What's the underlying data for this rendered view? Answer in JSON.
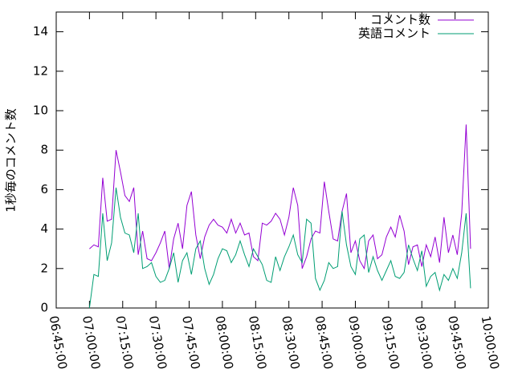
{
  "chart_data": {
    "type": "line",
    "ylabel": "1秒毎のコメント数",
    "x": [
      "07:00:00",
      "07:02:00",
      "07:04:00",
      "07:06:00",
      "07:08:00",
      "07:10:00",
      "07:12:00",
      "07:14:00",
      "07:16:00",
      "07:18:00",
      "07:20:00",
      "07:22:00",
      "07:24:00",
      "07:26:00",
      "07:28:00",
      "07:30:00",
      "07:32:00",
      "07:34:00",
      "07:36:00",
      "07:38:00",
      "07:40:00",
      "07:42:00",
      "07:44:00",
      "07:46:00",
      "07:48:00",
      "07:50:00",
      "07:52:00",
      "07:54:00",
      "07:56:00",
      "07:58:00",
      "08:00:00",
      "08:02:00",
      "08:04:00",
      "08:06:00",
      "08:08:00",
      "08:10:00",
      "08:12:00",
      "08:14:00",
      "08:16:00",
      "08:18:00",
      "08:20:00",
      "08:22:00",
      "08:24:00",
      "08:26:00",
      "08:28:00",
      "08:30:00",
      "08:32:00",
      "08:34:00",
      "08:36:00",
      "08:38:00",
      "08:40:00",
      "08:42:00",
      "08:44:00",
      "08:46:00",
      "08:48:00",
      "08:50:00",
      "08:52:00",
      "08:54:00",
      "08:56:00",
      "08:58:00",
      "09:00:00",
      "09:02:00",
      "09:04:00",
      "09:06:00",
      "09:08:00",
      "09:10:00",
      "09:12:00",
      "09:14:00",
      "09:16:00",
      "09:18:00",
      "09:20:00",
      "09:22:00",
      "09:24:00",
      "09:26:00",
      "09:28:00",
      "09:30:00",
      "09:32:00",
      "09:34:00",
      "09:36:00",
      "09:38:00",
      "09:40:00",
      "09:42:00",
      "09:44:00",
      "09:46:00",
      "09:48:00",
      "09:50:00",
      "09:52:00"
    ],
    "series": [
      {
        "name": "コメント数",
        "color": "#9400d3",
        "values": [
          3.0,
          3.2,
          3.1,
          6.6,
          4.4,
          4.5,
          8.0,
          6.9,
          5.7,
          5.4,
          6.1,
          2.7,
          3.9,
          2.5,
          2.4,
          2.8,
          3.3,
          3.9,
          2.0,
          3.5,
          4.3,
          3.0,
          5.2,
          5.9,
          3.7,
          2.5,
          3.6,
          4.2,
          4.5,
          4.2,
          4.1,
          3.8,
          4.5,
          3.8,
          4.3,
          3.7,
          3.8,
          2.6,
          2.4,
          4.3,
          4.2,
          4.4,
          4.8,
          4.5,
          3.7,
          4.6,
          6.1,
          5.2,
          2.0,
          2.6,
          3.5,
          3.9,
          3.8,
          6.4,
          4.9,
          3.5,
          3.4,
          4.9,
          5.8,
          2.8,
          3.4,
          2.4,
          2.0,
          3.4,
          3.7,
          2.5,
          2.7,
          3.6,
          4.1,
          3.6,
          4.7,
          3.9,
          2.2,
          3.1,
          3.2,
          2.1,
          3.2,
          2.6,
          3.6,
          2.3,
          4.6,
          2.8,
          3.7,
          2.7,
          4.8,
          9.3,
          3.0
        ]
      },
      {
        "name": "英語コメント",
        "color": "#009e73",
        "values": [
          0,
          1.7,
          1.6,
          4.8,
          2.4,
          3.3,
          6.1,
          4.6,
          3.8,
          3.7,
          2.8,
          4.8,
          2.0,
          2.1,
          2.3,
          1.6,
          1.3,
          1.4,
          2.0,
          2.8,
          1.3,
          2.4,
          2.8,
          1.7,
          3.0,
          3.4,
          2.0,
          1.2,
          1.7,
          2.5,
          3.0,
          2.9,
          2.3,
          2.7,
          3.4,
          2.7,
          2.1,
          3.0,
          2.6,
          2.2,
          1.4,
          1.3,
          2.6,
          1.9,
          2.6,
          3.1,
          3.7,
          2.7,
          2.3,
          4.5,
          4.3,
          1.5,
          0.9,
          1.4,
          2.3,
          2.0,
          2.1,
          4.9,
          3.2,
          2.1,
          1.7,
          3.5,
          3.7,
          1.8,
          2.6,
          1.9,
          1.4,
          1.9,
          2.4,
          1.6,
          1.5,
          1.8,
          3.2,
          2.5,
          1.9,
          2.9,
          1.1,
          1.6,
          1.8,
          0.9,
          1.7,
          1.4,
          2.0,
          1.5,
          2.8,
          4.8,
          1.0
        ]
      }
    ],
    "xlim": [
      "06:45:00",
      "10:00:00"
    ],
    "xticks": [
      "06:45:00",
      "07:00:00",
      "07:15:00",
      "07:30:00",
      "07:45:00",
      "08:00:00",
      "08:15:00",
      "08:30:00",
      "08:45:00",
      "09:00:00",
      "09:15:00",
      "09:30:00",
      "09:45:00",
      "10:00:00"
    ],
    "ylim": [
      0,
      15
    ],
    "yticks": [
      0,
      2,
      4,
      6,
      8,
      10,
      12,
      14
    ],
    "legend": "top right"
  }
}
